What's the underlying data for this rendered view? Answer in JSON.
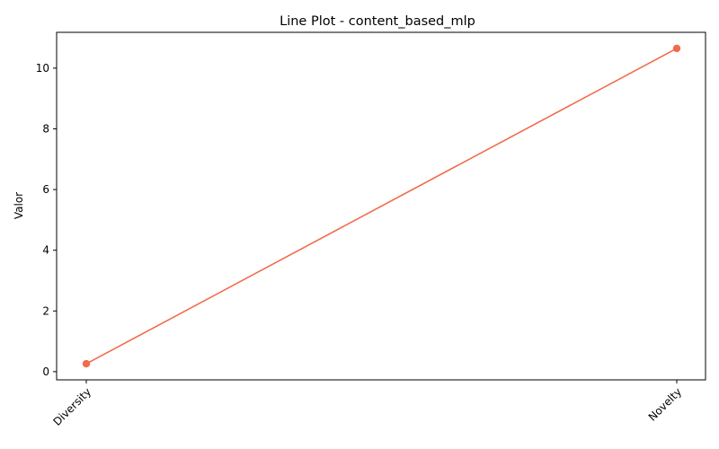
{
  "chart_data": {
    "type": "line",
    "title": "Line Plot - content_based_mlp",
    "xlabel": "",
    "ylabel": "Valor",
    "categories": [
      "Diversity",
      "Novelty"
    ],
    "series": [
      {
        "values": [
          0.26,
          10.65
        ],
        "color": "#f26a4b",
        "marker": "circle"
      }
    ],
    "ylim": [
      -0.27,
      11.18
    ],
    "yticks": [
      0,
      2,
      4,
      6,
      8,
      10
    ],
    "grid": false,
    "legend": "none"
  }
}
